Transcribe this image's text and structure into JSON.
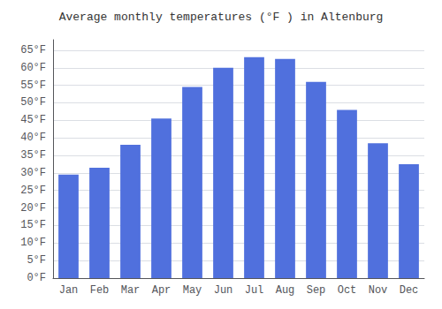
{
  "chart_data": {
    "type": "bar",
    "title": "Average monthly temperatures (°F ) in Altenburg",
    "categories": [
      "Jan",
      "Feb",
      "Mar",
      "Apr",
      "May",
      "Jun",
      "Jul",
      "Aug",
      "Sep",
      "Oct",
      "Nov",
      "Dec"
    ],
    "values": [
      29.5,
      31.5,
      38.0,
      45.5,
      54.5,
      60.0,
      63.0,
      62.5,
      56.0,
      48.0,
      38.5,
      32.5
    ],
    "ylim": [
      0,
      68
    ],
    "yticks": [
      {
        "value": 0,
        "label": "0°F"
      },
      {
        "value": 5,
        "label": "5°F"
      },
      {
        "value": 10,
        "label": "10°F"
      },
      {
        "value": 15,
        "label": "15°F"
      },
      {
        "value": 20,
        "label": "20°F"
      },
      {
        "value": 25,
        "label": "25°F"
      },
      {
        "value": 30,
        "label": "30°F"
      },
      {
        "value": 35,
        "label": "35°F"
      },
      {
        "value": 40,
        "label": "40°F"
      },
      {
        "value": 45,
        "label": "45°F"
      },
      {
        "value": 50,
        "label": "50°F"
      },
      {
        "value": 55,
        "label": "55°F"
      },
      {
        "value": 60,
        "label": "60°F"
      },
      {
        "value": 65,
        "label": "65°F"
      }
    ],
    "grid": true
  }
}
